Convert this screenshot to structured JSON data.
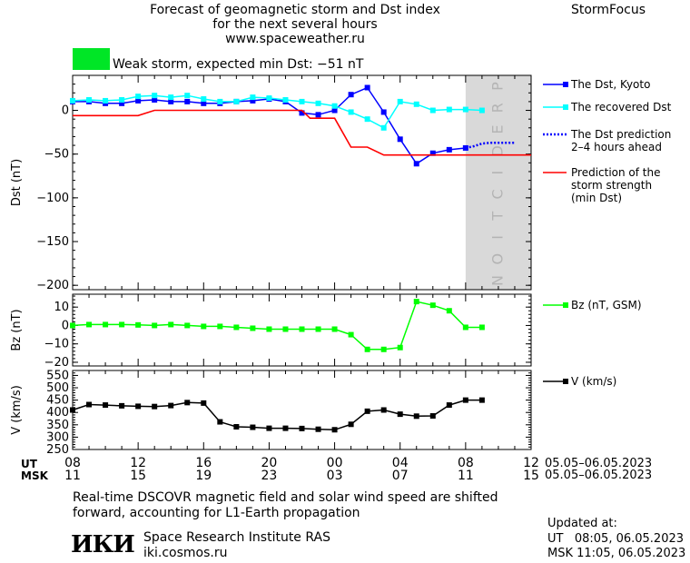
{
  "header": {
    "title_line1": "Forecast of geomagnetic storm and Dst index",
    "title_line2": "for the next several hours",
    "website": "www.spaceweather.ru",
    "brand": "StormFocus",
    "storm_swatch_color": "#00e626",
    "storm_status": "Weak storm, expected min Dst: −51 nT"
  },
  "footer": {
    "note_line1": "Real-time DSCOVR magnetic field and solar wind speed are shifted",
    "note_line2": "forward, accounting for L1-Earth propagation",
    "institute_logo": "ИКИ",
    "institute_name": "Space Research Institute RAS",
    "institute_site": "iki.cosmos.ru",
    "updated_label": "Updated at:",
    "updated_ut": "UT   08:05, 06.05.2023",
    "updated_msk": "MSK 11:05, 06.05.2023"
  },
  "time_axis": {
    "ut_label": "UT",
    "msk_label": "MSK",
    "ut_ticks": [
      "08",
      "12",
      "16",
      "20",
      "00",
      "04",
      "08",
      "12"
    ],
    "msk_ticks": [
      "11",
      "15",
      "19",
      "23",
      "03",
      "07",
      "11",
      "15"
    ],
    "date_range_ut": "05.05–06.05.2023",
    "date_range_msk": "05.05–06.05.2023"
  },
  "chart_data": [
    {
      "type": "line",
      "ylabel": "Dst (nT)",
      "ylim": [
        -205,
        40
      ],
      "y_ticks": [
        0,
        -50,
        -100,
        -150,
        -200
      ],
      "y_tick_labels": [
        "0",
        "−50",
        "−100",
        "−150",
        "−200"
      ],
      "x_unit": "hours since 08 UT 05.05.2023",
      "xlim": [
        0,
        28
      ],
      "prediction_zone": {
        "from": 24,
        "to": 28,
        "label": "PREDICTION",
        "color": "#d9d9d9"
      },
      "series": [
        {
          "name": "The Dst, Kyoto",
          "color": "#0000ff",
          "style": "line-square",
          "x": [
            0,
            1,
            2,
            3,
            4,
            5,
            6,
            7,
            8,
            9,
            10,
            11,
            12,
            13,
            14,
            15,
            16,
            17,
            18,
            19,
            20,
            21,
            22,
            23,
            24
          ],
          "y": [
            10,
            10,
            8,
            8,
            11,
            12,
            10,
            10,
            8,
            8,
            10,
            11,
            13,
            10,
            -3,
            -5,
            0,
            18,
            26,
            -2,
            -33,
            -61,
            -49,
            -45,
            -43
          ]
        },
        {
          "name": "The recovered Dst",
          "color": "#00ffff",
          "style": "line-square",
          "x": [
            0,
            1,
            2,
            3,
            4,
            5,
            6,
            7,
            8,
            9,
            10,
            11,
            12,
            13,
            14,
            15,
            16,
            17,
            18,
            19,
            20,
            21,
            22,
            23,
            24,
            25
          ],
          "y": [
            11,
            12,
            11,
            12,
            16,
            17,
            15,
            17,
            13,
            10,
            10,
            15,
            14,
            12,
            10,
            8,
            5,
            -2,
            -10,
            -20,
            10,
            7,
            0,
            1,
            1,
            0
          ]
        },
        {
          "name": "The Dst prediction\n2–4 hours ahead",
          "color": "#0000ff",
          "style": "dotted",
          "x": [
            24,
            24.5,
            25,
            25.5,
            26,
            26.5,
            27
          ],
          "y": [
            -43,
            -41,
            -38,
            -37,
            -37,
            -37,
            -37
          ]
        },
        {
          "name": "Prediction of the\nstorm strength\n(min Dst)",
          "color": "#ff0000",
          "style": "line",
          "x": [
            0,
            4,
            5,
            14,
            14.5,
            16,
            17,
            18,
            19,
            20,
            28
          ],
          "y": [
            -6,
            -6,
            0,
            0,
            -9,
            -9,
            -42,
            -42,
            -51,
            -51,
            -51
          ]
        }
      ]
    },
    {
      "type": "line",
      "ylabel": "Bz (nT)",
      "ylim": [
        -22,
        17
      ],
      "y_ticks": [
        10,
        0,
        -10,
        -20
      ],
      "y_tick_labels": [
        "10",
        "0",
        "−10",
        "−20"
      ],
      "xlim": [
        0,
        28
      ],
      "series": [
        {
          "name": "Bz (nT, GSM)",
          "color": "#00ff00",
          "style": "line-square",
          "x": [
            0,
            1,
            2,
            3,
            4,
            5,
            6,
            7,
            8,
            9,
            10,
            11,
            12,
            13,
            14,
            15,
            16,
            17,
            18,
            19,
            20,
            21,
            22,
            23,
            24,
            25
          ],
          "y": [
            0,
            0.5,
            0.5,
            0.5,
            0.3,
            0,
            0.5,
            0,
            -0.5,
            -0.5,
            -1,
            -1.5,
            -2,
            -2,
            -2,
            -2,
            -2,
            -5,
            -13,
            -13,
            -12,
            13,
            11,
            8,
            -1,
            -1
          ]
        }
      ]
    },
    {
      "type": "line",
      "ylabel": "V (km/s)",
      "ylim": [
        250,
        570
      ],
      "y_ticks": [
        250,
        300,
        350,
        400,
        450,
        500,
        550
      ],
      "y_tick_labels": [
        "250",
        "300",
        "350",
        "400",
        "450",
        "500",
        "550"
      ],
      "xlim": [
        0,
        28
      ],
      "series": [
        {
          "name": "V (km/s)",
          "color": "#000000",
          "style": "line-square",
          "x": [
            0,
            1,
            2,
            3,
            4,
            5,
            6,
            7,
            8,
            9,
            10,
            11,
            12,
            13,
            14,
            15,
            16,
            17,
            18,
            19,
            20,
            21,
            22,
            23,
            24,
            25
          ],
          "y": [
            410,
            432,
            430,
            427,
            425,
            424,
            428,
            440,
            438,
            362,
            342,
            340,
            336,
            336,
            335,
            332,
            330,
            352,
            405,
            410,
            393,
            385,
            386,
            430,
            450,
            450
          ]
        }
      ]
    }
  ]
}
